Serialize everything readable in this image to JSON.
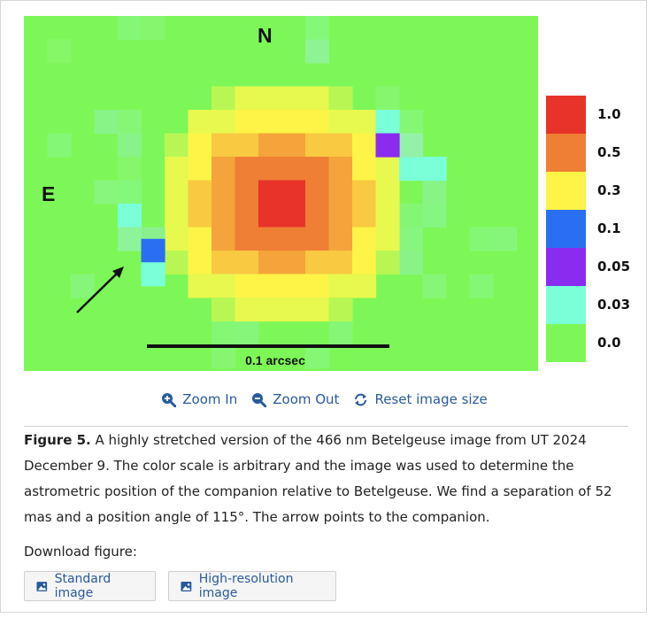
{
  "figure_image": {
    "north_label": "N",
    "east_label": "E",
    "scale_bar_label": "0.1 arcsec",
    "colors": {
      "background": "#7df757",
      "level_0_03": "#7affd9",
      "level_0_05": "#8a2cf0",
      "level_0_1": "#2a6ff2",
      "level_0_3": "#fdf447",
      "level_0_5": "#ef7f34",
      "level_1_0": "#e8332a"
    }
  },
  "colorbar": {
    "steps": [
      {
        "label": "1.0",
        "color": "#e8332a"
      },
      {
        "label": "0.5",
        "color": "#ef7f34"
      },
      {
        "label": "0.3",
        "color": "#fdf447"
      },
      {
        "label": "0.1",
        "color": "#2a6ff2"
      },
      {
        "label": "0.05",
        "color": "#8a2cf0"
      },
      {
        "label": "0.03",
        "color": "#7affd9"
      },
      {
        "label": "0.0",
        "color": "#7df757"
      }
    ]
  },
  "toolbar": {
    "zoom_in_label": "Zoom In",
    "zoom_out_label": "Zoom Out",
    "reset_label": "Reset image size",
    "zoom_in_icon": "zoom-in-icon",
    "zoom_out_icon": "zoom-out-icon",
    "reset_icon": "refresh-icon"
  },
  "caption": {
    "label": "Figure 5.",
    "text": " A highly stretched version of the 466 nm Betelgeuse image from UT 2024 December 9. The color scale is arbitrary and the image was used to determine the astrometric position of the companion relative to Betelgeuse. We find a separation of 52 mas and a position angle of 115°. The arrow points to the companion."
  },
  "download": {
    "label": "Download figure:",
    "standard_label": "Standard image",
    "hires_label": "High-resolution image",
    "icon": "image-icon"
  },
  "link_color": "#2a5a9c"
}
